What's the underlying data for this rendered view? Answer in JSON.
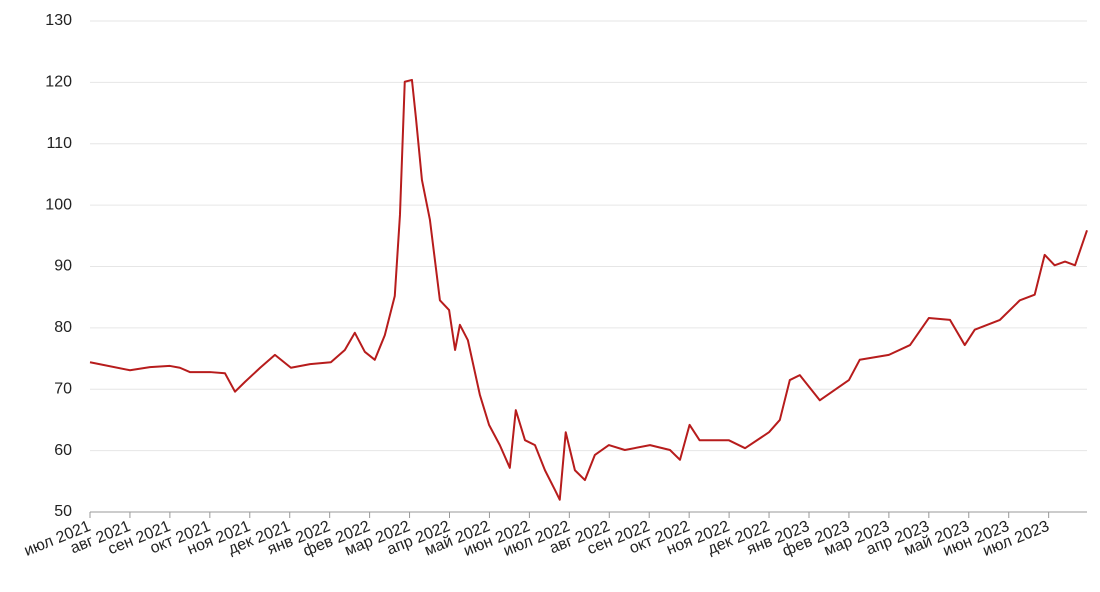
{
  "chart_data": {
    "type": "line",
    "x": [
      0,
      1.0,
      1.5,
      2.0,
      2.25,
      2.5,
      3.0,
      3.38,
      3.63,
      3.88,
      4.26,
      4.63,
      5.03,
      5.51,
      6.03,
      6.38,
      6.63,
      6.88,
      7.13,
      7.38,
      7.63,
      7.76,
      7.88,
      8.06,
      8.16,
      8.31,
      8.51,
      8.76,
      8.99,
      9.14,
      9.26,
      9.46,
      9.76,
      9.99,
      10.26,
      10.51,
      10.66,
      10.89,
      11.14,
      11.39,
      11.64,
      11.76,
      11.91,
      12.14,
      12.39,
      12.64,
      12.99,
      13.39,
      14.02,
      14.52,
      14.77,
      15.01,
      15.26,
      15.99,
      16.4,
      17.0,
      17.27,
      17.52,
      17.77,
      18.27,
      19.0,
      19.27,
      20.0,
      20.53,
      21.0,
      21.53,
      21.9,
      22.15,
      22.78,
      23.28,
      23.65,
      23.9,
      24.15,
      24.41,
      24.66,
      24.96
    ],
    "series": [
      {
        "color": "#b71c1c",
        "values": [
          74.4,
          73.1,
          73.6,
          73.8,
          73.5,
          72.8,
          72.8,
          72.6,
          69.6,
          71.2,
          73.5,
          75.6,
          73.5,
          74.1,
          74.4,
          76.4,
          79.2,
          76.1,
          74.8,
          78.8,
          85.2,
          98.4,
          120.1,
          120.4,
          114.2,
          104.1,
          97.6,
          84.5,
          82.9,
          76.4,
          80.5,
          78.0,
          69.1,
          64.2,
          60.9,
          57.2,
          66.6,
          61.7,
          60.9,
          56.8,
          53.6,
          52.0,
          63.0,
          56.8,
          55.2,
          59.3,
          60.9,
          60.1,
          60.9,
          60.1,
          58.5,
          64.2,
          61.7,
          61.7,
          60.4,
          63.0,
          65.0,
          71.5,
          72.3,
          68.2,
          71.5,
          74.8,
          75.6,
          77.2,
          81.6,
          81.3,
          77.2,
          79.7,
          81.3,
          84.5,
          85.4,
          91.9,
          90.2,
          90.8,
          90.2,
          95.9
        ]
      }
    ],
    "xlim": [
      0,
      24.96
    ],
    "xticks": [
      {
        "value": 0,
        "label": "июл 2021"
      },
      {
        "value": 1,
        "label": "авг 2021"
      },
      {
        "value": 2,
        "label": "сен 2021"
      },
      {
        "value": 3,
        "label": "окт 2021"
      },
      {
        "value": 4,
        "label": "ноя 2021"
      },
      {
        "value": 5,
        "label": "дек 2021"
      },
      {
        "value": 6,
        "label": "янв 2022"
      },
      {
        "value": 7,
        "label": "фев 2022"
      },
      {
        "value": 8,
        "label": "мар 2022"
      },
      {
        "value": 9,
        "label": "апр 2022"
      },
      {
        "value": 10,
        "label": "май 2022"
      },
      {
        "value": 11,
        "label": "июн 2022"
      },
      {
        "value": 12,
        "label": "июл 2022"
      },
      {
        "value": 13,
        "label": "авг 2022"
      },
      {
        "value": 14,
        "label": "сен 2022"
      },
      {
        "value": 15,
        "label": "окт 2022"
      },
      {
        "value": 16,
        "label": "ноя 2022"
      },
      {
        "value": 17,
        "label": "дек 2022"
      },
      {
        "value": 18,
        "label": "янв 2023"
      },
      {
        "value": 19,
        "label": "фев 2023"
      },
      {
        "value": 20,
        "label": "мар 2023"
      },
      {
        "value": 21,
        "label": "апр 2023"
      },
      {
        "value": 22,
        "label": "май 2023"
      },
      {
        "value": 23,
        "label": "июн 2023"
      },
      {
        "value": 24,
        "label": "июл 2023"
      }
    ],
    "ylim": [
      50,
      130
    ],
    "yticks": [
      50,
      60,
      70,
      80,
      90,
      100,
      110,
      120,
      130
    ],
    "grid": true
  }
}
